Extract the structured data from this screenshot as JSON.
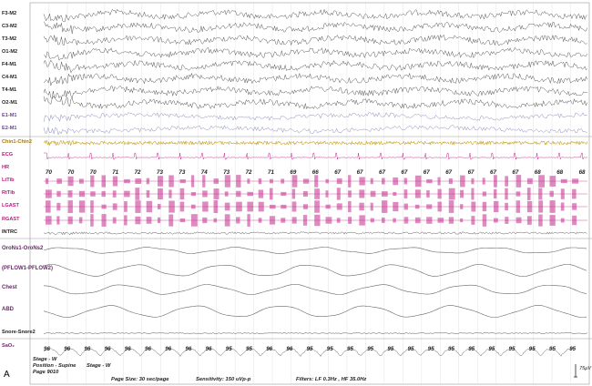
{
  "colors": {
    "eeg": "#444444",
    "eog": "#8a8ab8",
    "chin": "#c9a227",
    "leg": "#c2288a",
    "ecg": "#c2288a",
    "resp": "#666666",
    "grid": "#9a9a9a"
  },
  "channels": [
    {
      "label": "F3-M2",
      "color": "#222222"
    },
    {
      "label": "C3-M2",
      "color": "#222222"
    },
    {
      "label": "T3-M2",
      "color": "#222222"
    },
    {
      "label": "O1-M2",
      "color": "#222222"
    },
    {
      "label": "F4-M1",
      "color": "#222222"
    },
    {
      "label": "C4-M1",
      "color": "#222222"
    },
    {
      "label": "T4-M1",
      "color": "#222222"
    },
    {
      "label": "O2-M1",
      "color": "#222222"
    },
    {
      "label": "E1-M1",
      "color": "#6a4a8a"
    },
    {
      "label": "E2-M1",
      "color": "#6a4a8a"
    },
    {
      "label": "Chin1-Chin2",
      "color": "#a07a10"
    },
    {
      "label": "ECG",
      "color": "#b3207a"
    },
    {
      "label": "HR",
      "color": "#b3207a"
    },
    {
      "label": "LtTib",
      "color": "#b3207a"
    },
    {
      "label": "RtTib",
      "color": "#b3207a"
    },
    {
      "label": "LGAST",
      "color": "#b3207a"
    },
    {
      "label": "RGAST",
      "color": "#b3207a"
    },
    {
      "label": "INTRC",
      "color": "#222222"
    },
    {
      "label": "OroNs1-OroNs2",
      "color": "#6a2a6a"
    },
    {
      "label": "(PFLOW1-PFLOW2)",
      "color": "#6a2a6a"
    },
    {
      "label": "Chest",
      "color": "#6a2a6a"
    },
    {
      "label": "ABD",
      "color": "#6a2a6a"
    },
    {
      "label": "Snore-Snore2",
      "color": "#222222"
    },
    {
      "label": "SaO₂",
      "color": "#6a2a6a"
    }
  ],
  "hr_values": [
    "70",
    "70",
    "70",
    "71",
    "72",
    "73",
    "73",
    "74",
    "73",
    "72",
    "71",
    "69",
    "66",
    "67",
    "67",
    "67",
    "67",
    "67",
    "67",
    "67",
    "67",
    "67",
    "68",
    "68",
    "68"
  ],
  "sao2_values": [
    "96",
    "96",
    "96",
    "96",
    "96",
    "96",
    "96",
    "96",
    "96",
    "95",
    "95",
    "96",
    "96",
    "95",
    "95",
    "95",
    "95",
    "95",
    "95",
    "95",
    "95",
    "95",
    "95",
    "95",
    "95",
    "95",
    "95"
  ],
  "annotations": {
    "stage_1": "Stage - W",
    "position": "Position - Supine",
    "page": "Page 9010",
    "stage_2": "Stage - W"
  },
  "footer": {
    "page_size": "Page Size: 30 sec/page",
    "sensitivity": "Sensitivity: 150 uVp-p",
    "filters": "Filters: LF 0.3Hz , HF 35.0Hz"
  },
  "panel_label": "A",
  "scale_label": "75μV"
}
